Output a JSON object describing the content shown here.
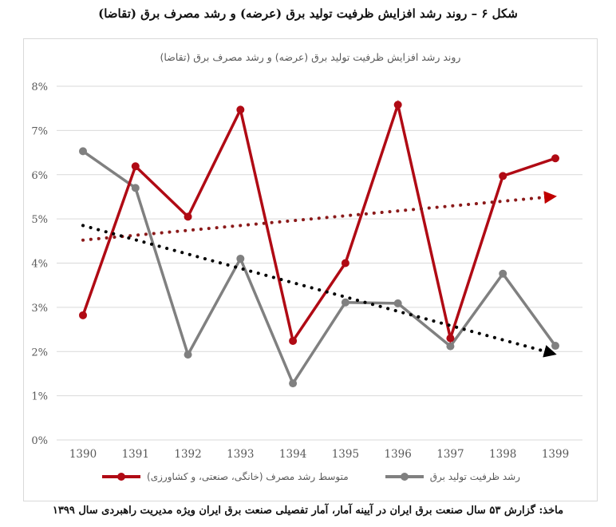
{
  "figure": {
    "title": "شکل ۶ – روند رشد افزایش ظرفیت تولید برق (عرضه) و رشد مصرف برق (تقاضا)",
    "source": "ماخذ: گزارش ۵۳ سال صنعت برق ایران در آیینه آمار، آمار تفصیلی صنعت برق ایران ویژه مدیریت راهبردی سال ۱۳۹۹"
  },
  "colors": {
    "consumption": "#B00A14",
    "capacity": "#808080",
    "consumption_trend": "#8B1A1A",
    "capacity_trend": "#000000",
    "grid": "#d9d9d9",
    "axis_text": "#595959"
  },
  "legend": {
    "consumption_label": "متوسط رشد مصرف (خانگی، صنعتی، و کشاورزی)",
    "capacity_label": "رشد ظرفیت تولید برق"
  },
  "chart_data": {
    "type": "line",
    "title": "روند رشد افزایش ظرفیت تولید برق (عرضه) و رشد مصرف برق (تقاضا)",
    "xlabel": "",
    "ylabel": "",
    "categories": [
      "1390",
      "1391",
      "1392",
      "1393",
      "1394",
      "1395",
      "1396",
      "1397",
      "1398",
      "1399"
    ],
    "yticks": [
      "0%",
      "1%",
      "2%",
      "3%",
      "4%",
      "5%",
      "6%",
      "7%",
      "8%"
    ],
    "ylim": [
      0,
      8
    ],
    "grid": true,
    "legend_position": "bottom",
    "series": [
      {
        "name": "متوسط رشد مصرف (خانگی، صنعتی، و کشاورزی)",
        "color": "#B00A14",
        "values": [
          2.82,
          6.19,
          5.05,
          7.47,
          2.24,
          4.0,
          7.58,
          2.3,
          5.97,
          6.37
        ]
      },
      {
        "name": "رشد ظرفیت تولید برق",
        "color": "#808080",
        "values": [
          6.53,
          5.7,
          1.93,
          4.1,
          1.28,
          3.11,
          3.09,
          2.12,
          3.76,
          2.13
        ]
      }
    ],
    "trendlines": [
      {
        "series": "متوسط رشد مصرف (خانگی، صنعتی، و کشاورزی)",
        "style": "dotted-arrow",
        "color": "#8B1A1A",
        "start": 4.52,
        "end": 5.5
      },
      {
        "series": "رشد ظرفیت تولید برق",
        "style": "dotted-arrow",
        "color": "#000000",
        "start": 4.85,
        "end": 1.97
      }
    ]
  }
}
